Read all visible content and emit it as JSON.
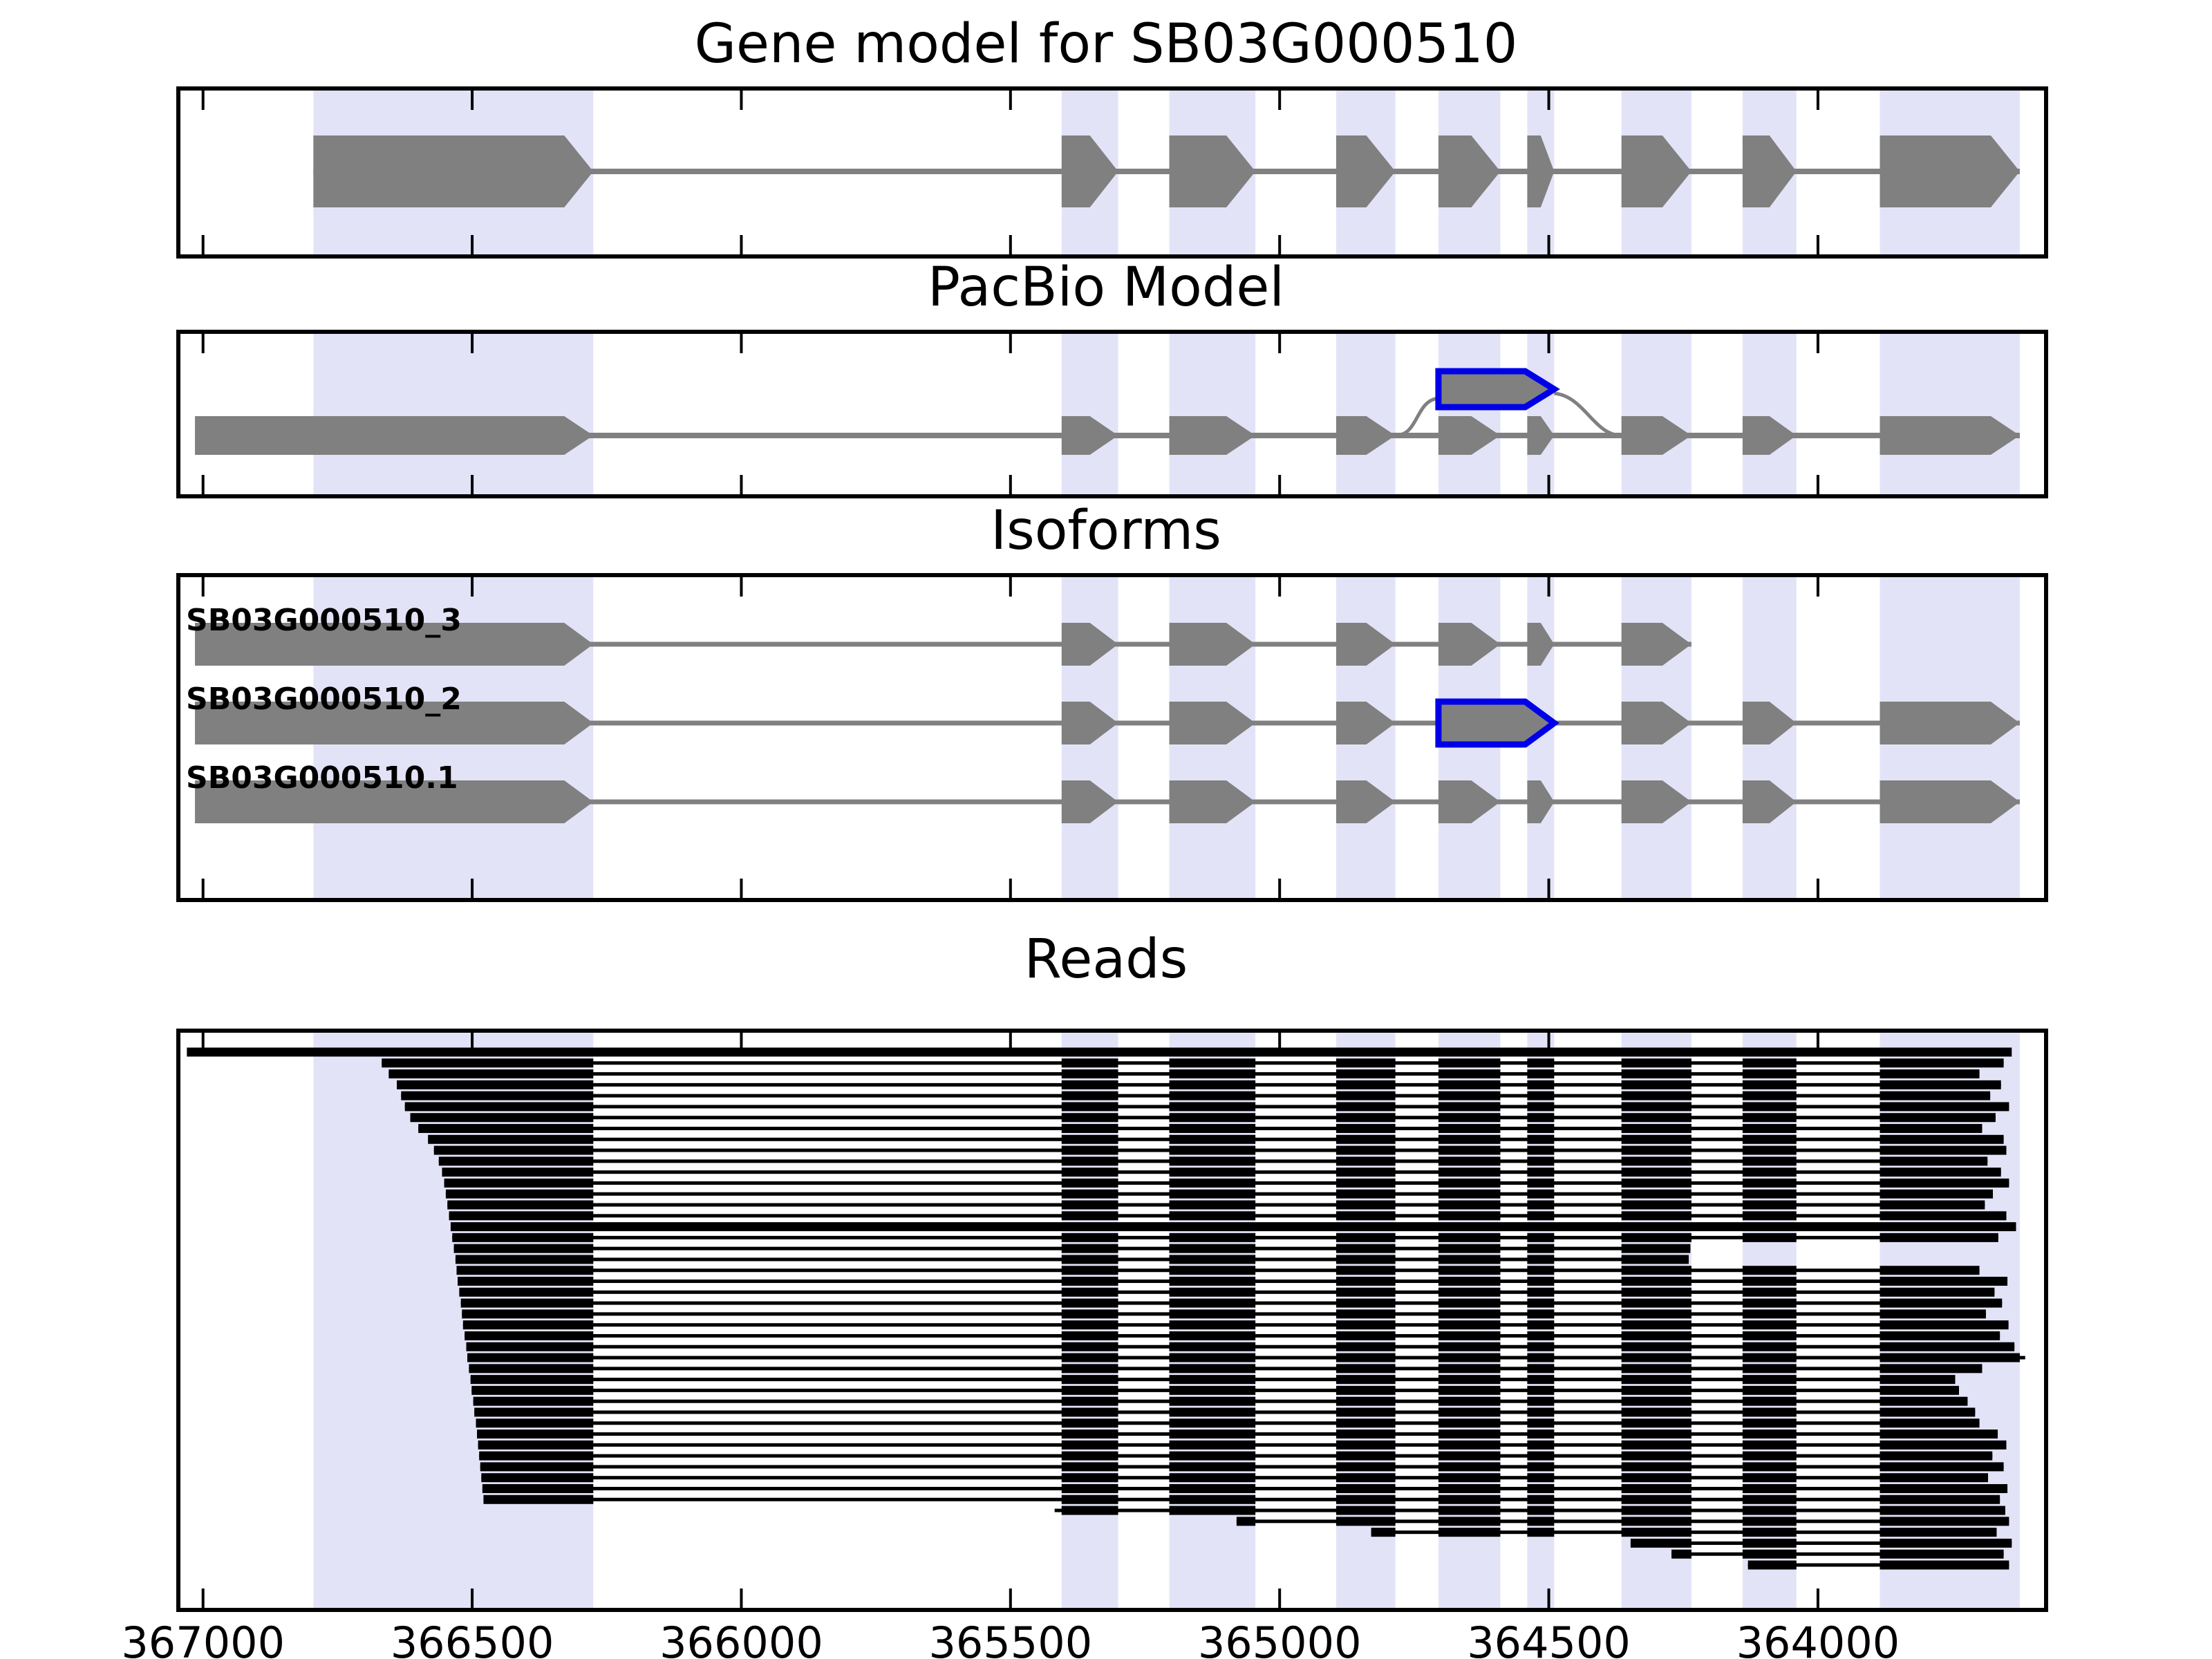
{
  "titles": {
    "gene_model": "Gene model for SB03G000510",
    "pacbio": "PacBio Model",
    "isoforms": "Isoforms",
    "reads": "Reads"
  },
  "colors": {
    "exon": "#808080",
    "intron": "#808080",
    "band": "#E3E3F8",
    "highlight": "#0000E8",
    "read": "#000000",
    "axis": "#000000",
    "background": "#FFFFFF"
  },
  "chart_data": {
    "type": "genome-browser-tracks",
    "gene_id": "SB03G000510",
    "x_axis": {
      "label_ticks": [
        367000,
        366500,
        366000,
        365500,
        365000,
        364500,
        364000
      ],
      "domain": [
        367042,
        363580
      ],
      "reversed": true
    },
    "bands": [
      [
        366795,
        366275
      ],
      [
        365405,
        365300
      ],
      [
        365205,
        365045
      ],
      [
        364895,
        364785
      ],
      [
        364705,
        364590
      ],
      [
        364540,
        364490
      ],
      [
        364365,
        364235
      ],
      [
        364140,
        364040
      ],
      [
        363885,
        363625
      ]
    ],
    "gene_model": {
      "exons": [
        [
          366795,
          366275
        ],
        [
          365405,
          365300
        ],
        [
          365205,
          365045
        ],
        [
          364895,
          364785
        ],
        [
          364705,
          364590
        ],
        [
          364540,
          364490
        ],
        [
          364365,
          364235
        ],
        [
          364140,
          364040
        ],
        [
          363885,
          363625
        ]
      ]
    },
    "pacbio_model": {
      "exons": [
        [
          367015,
          366275
        ],
        [
          365405,
          365300
        ],
        [
          365205,
          365045
        ],
        [
          364895,
          364785
        ],
        [
          364705,
          364590
        ],
        [
          364540,
          364490
        ],
        [
          364365,
          364235
        ],
        [
          364140,
          364040
        ],
        [
          363885,
          363625
        ]
      ],
      "alt_exon": [
        364705,
        364490
      ],
      "alt_exon_connects": [
        364785,
        364365
      ]
    },
    "isoforms": [
      {
        "name": "SB03G000510_3",
        "exons": [
          [
            367015,
            366275
          ],
          [
            365405,
            365300
          ],
          [
            365205,
            365045
          ],
          [
            364895,
            364785
          ],
          [
            364705,
            364590
          ],
          [
            364540,
            364490
          ],
          [
            364365,
            364235
          ]
        ],
        "highlight_exon": null
      },
      {
        "name": "SB03G000510_2",
        "exons": [
          [
            367015,
            366275
          ],
          [
            365405,
            365300
          ],
          [
            365205,
            365045
          ],
          [
            364895,
            364785
          ],
          [
            364705,
            364490
          ],
          [
            364365,
            364235
          ],
          [
            364140,
            364040
          ],
          [
            363885,
            363625
          ]
        ],
        "highlight_exon": 4
      },
      {
        "name": "SB03G000510.1",
        "exons": [
          [
            367015,
            366275
          ],
          [
            365405,
            365300
          ],
          [
            365205,
            365045
          ],
          [
            364895,
            364785
          ],
          [
            364705,
            364590
          ],
          [
            364540,
            364490
          ],
          [
            364365,
            364235
          ],
          [
            364140,
            364040
          ],
          [
            363885,
            363625
          ]
        ],
        "highlight_exon": null
      }
    ],
    "reads": [
      {
        "s": 367030,
        "e": 363640,
        "t": "g"
      },
      {
        "s": 366668,
        "e": 363655
      },
      {
        "s": 366655,
        "e": 363700
      },
      {
        "s": 366640,
        "e": 363660
      },
      {
        "s": 366632,
        "e": 363680
      },
      {
        "s": 366625,
        "e": 363645
      },
      {
        "s": 366615,
        "e": 363670
      },
      {
        "s": 366600,
        "e": 363695
      },
      {
        "s": 366582,
        "e": 363655
      },
      {
        "s": 366571,
        "e": 363650
      },
      {
        "s": 366562,
        "e": 363685
      },
      {
        "s": 366556,
        "e": 363660
      },
      {
        "s": 366552,
        "e": 363645
      },
      {
        "s": 366549,
        "e": 363675
      },
      {
        "s": 366546,
        "e": 363690
      },
      {
        "s": 366543,
        "e": 363650
      },
      {
        "s": 366540,
        "e": 363632,
        "t": "g"
      },
      {
        "s": 366537,
        "e": 363665
      },
      {
        "s": 366534,
        "e": 364237
      },
      {
        "s": 366531,
        "e": 364240
      },
      {
        "s": 366529,
        "e": 363700
      },
      {
        "s": 366527,
        "e": 363648
      },
      {
        "s": 366524,
        "e": 363672
      },
      {
        "s": 366521,
        "e": 363658
      },
      {
        "s": 366519,
        "e": 363688
      },
      {
        "s": 366517,
        "e": 363646
      },
      {
        "s": 366514,
        "e": 363662
      },
      {
        "s": 366511,
        "e": 363635
      },
      {
        "s": 366509,
        "e": 363615
      },
      {
        "s": 366506,
        "e": 363695
      },
      {
        "s": 366503,
        "e": 363745
      },
      {
        "s": 366501,
        "e": 363738
      },
      {
        "s": 366498,
        "e": 363722
      },
      {
        "s": 366496,
        "e": 363708
      },
      {
        "s": 366493,
        "e": 363700
      },
      {
        "s": 366491,
        "e": 363666
      },
      {
        "s": 366489,
        "e": 363650
      },
      {
        "s": 366487,
        "e": 363676
      },
      {
        "s": 366485,
        "e": 363655
      },
      {
        "s": 366483,
        "e": 363684
      },
      {
        "s": 366481,
        "e": 363648
      },
      {
        "s": 366479,
        "e": 363662
      },
      {
        "s": 365418,
        "e": 363652
      },
      {
        "s": 365080,
        "e": 363645
      },
      {
        "s": 364830,
        "e": 363668
      },
      {
        "s": 364348,
        "e": 363640
      },
      {
        "s": 364272,
        "e": 363655
      },
      {
        "s": 364130,
        "e": 363645
      }
    ]
  }
}
